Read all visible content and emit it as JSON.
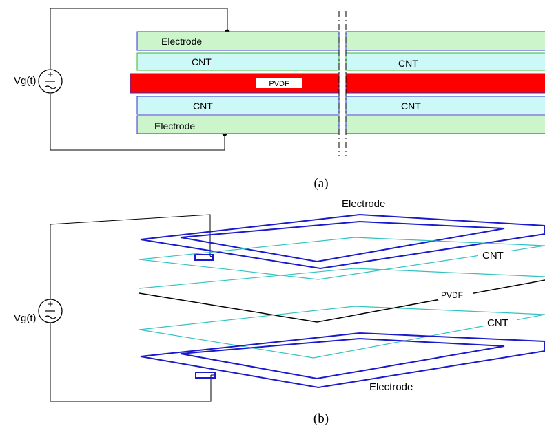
{
  "colors": {
    "electrode_fill": "#ccf5cc",
    "cnt_fill": "#ccf8f8",
    "pvdf_fill": "#ff0000",
    "layer_border": "#3333cc",
    "electrode_outline": "#1a1acc",
    "cnt_outline": "#33c2c2",
    "pvdf_outline": "#000000"
  },
  "panel_a": {
    "caption": "(a)",
    "source_label": "Vg(t)",
    "layers": {
      "electrode_top": "Electrode",
      "cnt_top_left": "CNT",
      "cnt_top_right": "CNT",
      "pvdf": "PVDF",
      "cnt_bottom_left": "CNT",
      "cnt_bottom_right": "CNT",
      "electrode_bottom": "Electrode"
    }
  },
  "panel_b": {
    "caption": "(b)",
    "source_label": "Vg(t)",
    "layers": {
      "electrode_top": "Electrode",
      "cnt_top": "CNT",
      "pvdf": "PVDF",
      "cnt_bottom": "CNT",
      "electrode_bottom": "Electrode"
    }
  }
}
